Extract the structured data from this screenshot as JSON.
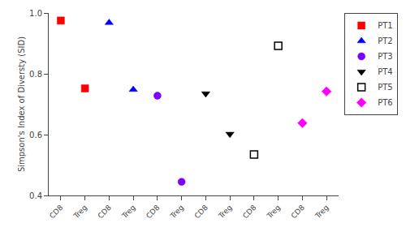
{
  "chart_data": {
    "type": "scatter",
    "ylabel": "Simpson's Index of Diversty (SID)",
    "categories": [
      "CD8",
      "Treg",
      "CD8",
      "Treg",
      "CD8",
      "Treg",
      "CD8",
      "Treg",
      "CD8",
      "Treg",
      "CD8",
      "Treg"
    ],
    "ylim": [
      0.4,
      1.0
    ],
    "yticks": [
      0.4,
      0.6,
      0.8,
      {
        "value": 1.0,
        "label": "1.0"
      }
    ],
    "grid": false,
    "legend": "upper right",
    "series": [
      {
        "name": "PT1",
        "color": "#ff0000",
        "marker": "square",
        "values": [
          0.975,
          0.752,
          null,
          null,
          null,
          null,
          null,
          null,
          null,
          null,
          null,
          null
        ]
      },
      {
        "name": "PT2",
        "color": "#0000ff",
        "marker": "triangle-up",
        "values": [
          null,
          null,
          0.968,
          0.748,
          null,
          null,
          null,
          null,
          null,
          null,
          null,
          null
        ]
      },
      {
        "name": "PT3",
        "color": "#7b00ff",
        "marker": "circle",
        "values": [
          null,
          null,
          null,
          null,
          0.728,
          0.445,
          null,
          null,
          null,
          null,
          null,
          null
        ]
      },
      {
        "name": "PT4",
        "color": "#000000",
        "marker": "triangle-down",
        "values": [
          null,
          null,
          null,
          null,
          null,
          null,
          0.735,
          0.602,
          null,
          null,
          null,
          null
        ]
      },
      {
        "name": "PT5",
        "color": "#000000",
        "marker": "square-open",
        "values": [
          null,
          null,
          null,
          null,
          null,
          null,
          null,
          null,
          0.535,
          0.892,
          null,
          null
        ]
      },
      {
        "name": "PT6",
        "color": "#ff00ff",
        "marker": "diamond",
        "values": [
          null,
          null,
          null,
          null,
          null,
          null,
          null,
          null,
          null,
          null,
          0.638,
          0.742
        ]
      }
    ]
  }
}
